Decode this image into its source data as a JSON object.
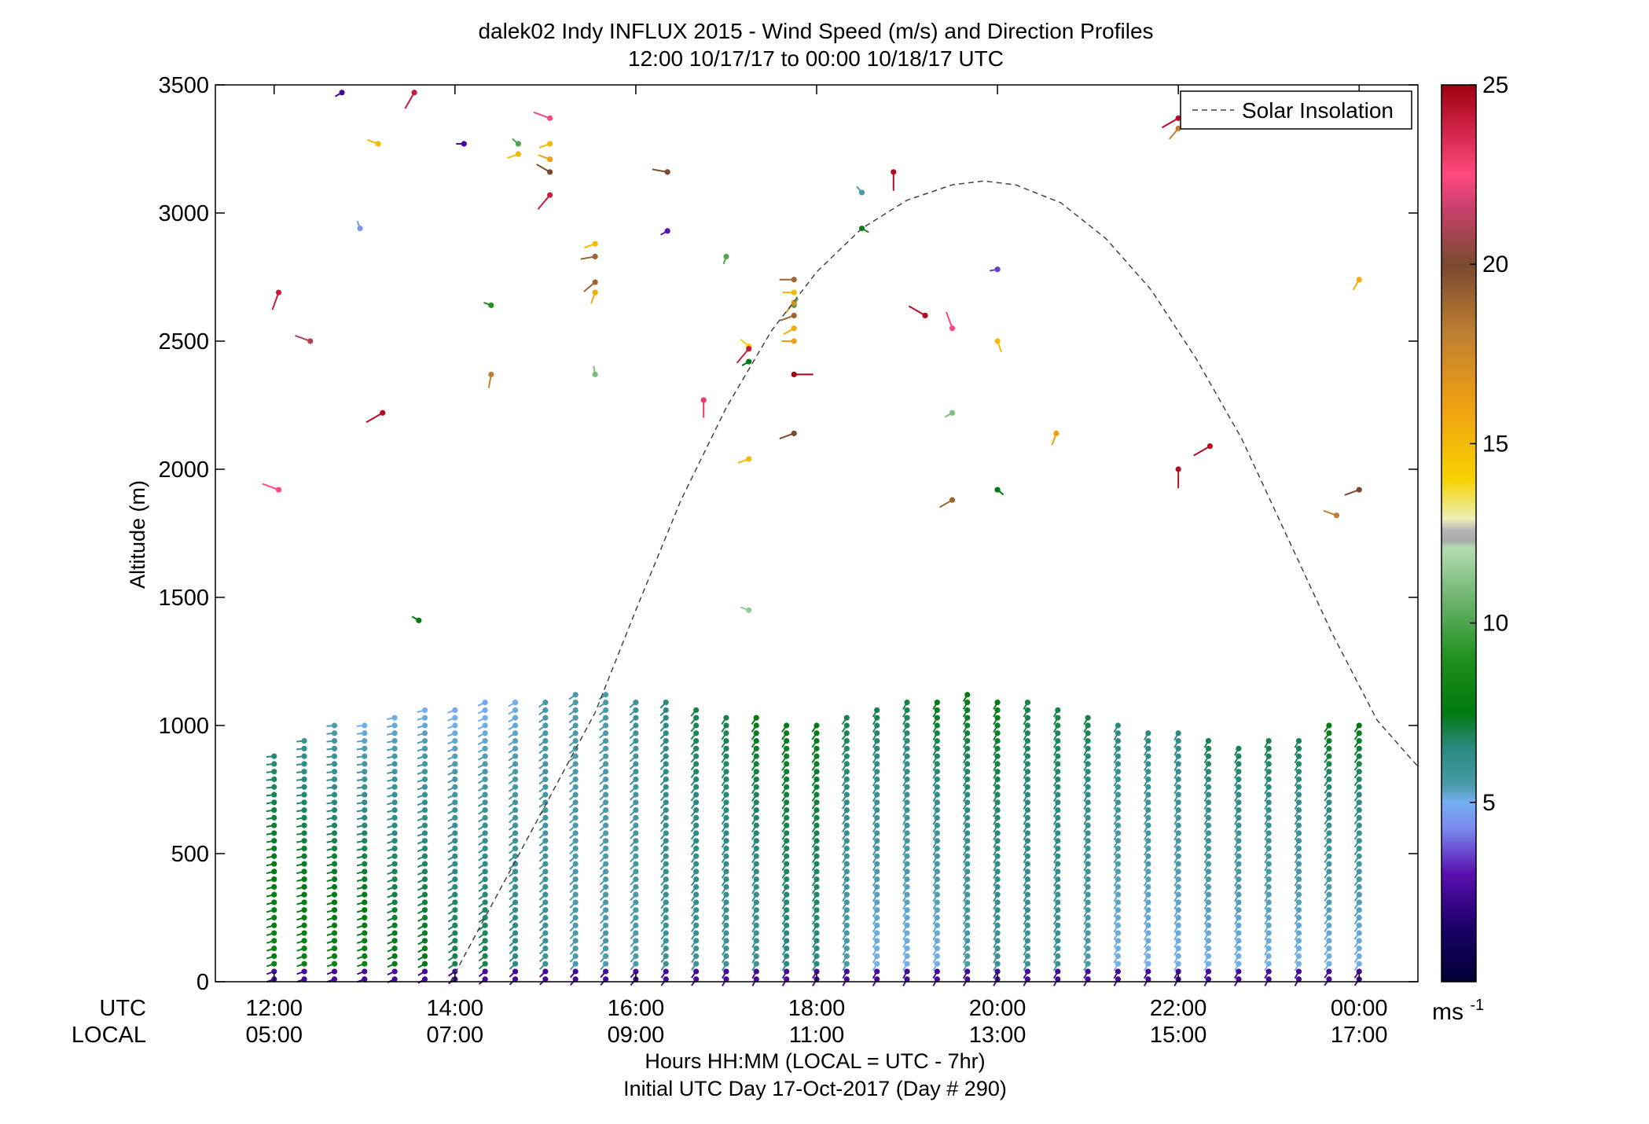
{
  "chart_data": {
    "type": "scatter",
    "title_line1": "dalek02 Indy INFLUX 2015 - Wind Speed (m/s) and Direction Profiles",
    "title_line2": "12:00 10/17/17 to 00:00 10/18/17  UTC",
    "ylabel": "Altitude (m)",
    "xlabel_line1": "Hours HH:MM  (LOCAL = UTC - 7hr)",
    "xlabel_line2": "Initial UTC Day 17-Oct-2017 (Day # 290)",
    "row_label_utc": "UTC",
    "row_label_local": "LOCAL",
    "ylim": [
      0,
      3500
    ],
    "xlim_hours_utc": [
      11.35,
      24.65
    ],
    "yticks": [
      0,
      500,
      1000,
      1500,
      2000,
      2500,
      3000,
      3500
    ],
    "ytick_labels": [
      "0",
      "500",
      "1000",
      "1500",
      "2000",
      "2500",
      "3000",
      "3500"
    ],
    "xticks_hours_utc": [
      12,
      14,
      16,
      18,
      20,
      22,
      24
    ],
    "xtick_labels_utc": [
      "12:00",
      "14:00",
      "16:00",
      "18:00",
      "20:00",
      "22:00",
      "00:00"
    ],
    "xtick_labels_local": [
      "05:00",
      "07:00",
      "09:00",
      "11:00",
      "13:00",
      "15:00",
      "17:00"
    ],
    "legend": {
      "label": "Solar Insolation",
      "placement": "top-right"
    },
    "colorbar": {
      "min": 0,
      "max": 25,
      "ticks": [
        5,
        10,
        15,
        20,
        25
      ],
      "tick_labels": [
        "5",
        "10",
        "15",
        "20",
        "25"
      ],
      "unit_base": "ms",
      "unit_exp": "-1",
      "stops": [
        {
          "v": 0,
          "c": "#000033"
        },
        {
          "v": 1.5,
          "c": "#1a0066"
        },
        {
          "v": 3,
          "c": "#5a0fb0"
        },
        {
          "v": 4.3,
          "c": "#7a8cf0"
        },
        {
          "v": 5,
          "c": "#74b0f0"
        },
        {
          "v": 5.5,
          "c": "#4a9aa8"
        },
        {
          "v": 6.5,
          "c": "#2a8a80"
        },
        {
          "v": 7.5,
          "c": "#007a10"
        },
        {
          "v": 9,
          "c": "#1e901e"
        },
        {
          "v": 10.5,
          "c": "#66b066"
        },
        {
          "v": 12.1,
          "c": "#b2dcb0"
        },
        {
          "v": 12.3,
          "c": "#a8a8a8"
        },
        {
          "v": 12.6,
          "c": "#b8b8b8"
        },
        {
          "v": 12.9,
          "c": "#eeeeb8"
        },
        {
          "v": 14,
          "c": "#f5d200"
        },
        {
          "v": 16,
          "c": "#f0a010"
        },
        {
          "v": 18,
          "c": "#c08030"
        },
        {
          "v": 20,
          "c": "#7a4a30"
        },
        {
          "v": 21.5,
          "c": "#c8406a"
        },
        {
          "v": 22.5,
          "c": "#ff4880"
        },
        {
          "v": 25,
          "c": "#a00010"
        }
      ]
    },
    "solar_insolation_curve": {
      "x_hours_utc": [
        15.55,
        16.0,
        16.5,
        17.0,
        17.5,
        18.0,
        18.5,
        19.0,
        19.5,
        19.85,
        20.2,
        20.7,
        21.2,
        21.7,
        22.2,
        22.7,
        23.2,
        23.7,
        24.2,
        24.65
      ],
      "y_altitude_m": [
        1050,
        1450,
        1880,
        2240,
        2540,
        2770,
        2940,
        3050,
        3110,
        3125,
        3110,
        3040,
        2900,
        2700,
        2430,
        2120,
        1740,
        1360,
        1020,
        840
      ],
      "y_left_edge_start_m": 0,
      "x_left_edge_start_hours_utc": 13.95
    },
    "profiles": {
      "times_hours_utc": [
        12.0,
        12.333,
        12.667,
        13.0,
        13.333,
        13.667,
        14.0,
        14.333,
        14.667,
        15.0,
        15.333,
        15.667,
        16.0,
        16.333,
        16.667,
        17.0,
        17.333,
        17.667,
        18.0,
        18.333,
        18.667,
        19.0,
        19.333,
        19.667,
        20.0,
        20.333,
        20.667,
        21.0,
        21.333,
        21.667,
        22.0,
        22.333,
        22.667,
        23.0,
        23.333,
        23.667,
        24.0
      ],
      "top_altitudes_m": [
        900,
        950,
        1000,
        1010,
        1050,
        1060,
        1080,
        1090,
        1100,
        1110,
        1130,
        1120,
        1100,
        1090,
        1070,
        1050,
        1040,
        1020,
        1010,
        1030,
        1080,
        1100,
        1110,
        1130,
        1110,
        1090,
        1060,
        1040,
        1000,
        980,
        990,
        950,
        930,
        940,
        960,
        1000,
        1000
      ],
      "low_level_speed_ms": [
        8,
        8,
        8,
        8,
        7.5,
        7.5,
        7,
        7,
        6.5,
        6,
        5.5,
        5.5,
        5.5,
        6,
        6,
        6,
        6,
        6.5,
        6.5,
        5.5,
        5,
        5,
        5,
        5.5,
        6,
        6,
        6,
        5.5,
        5,
        5,
        5,
        5,
        5,
        5,
        5,
        5,
        5
      ],
      "upper_level_speed_ms": [
        6.5,
        6,
        5.5,
        5,
        5,
        5,
        4.8,
        4.8,
        5,
        5.5,
        5.5,
        5.5,
        6,
        6.5,
        7,
        7,
        7.5,
        7.5,
        7.5,
        7,
        7,
        7,
        7.5,
        7.5,
        7.5,
        7,
        7,
        7,
        6.5,
        6.5,
        6.5,
        7,
        7,
        7,
        7,
        7.5,
        7.5
      ],
      "direction_from_deg_low": [
        250,
        250,
        250,
        250,
        245,
        240,
        235,
        230,
        225,
        225,
        220,
        220,
        220,
        215,
        215,
        210,
        210,
        210,
        210,
        210,
        210,
        210,
        210,
        210,
        210,
        210,
        210,
        210,
        210,
        210,
        210,
        210,
        210,
        210,
        210,
        215,
        215
      ],
      "direction_from_deg_high": [
        265,
        265,
        265,
        265,
        260,
        255,
        250,
        245,
        240,
        235,
        235,
        235,
        230,
        225,
        220,
        215,
        215,
        215,
        215,
        215,
        210,
        210,
        210,
        210,
        210,
        210,
        210,
        210,
        210,
        210,
        210,
        210,
        210,
        210,
        210,
        215,
        215
      ],
      "surface_speed_ms": 2.5,
      "range_gate_m": 30
    },
    "scattered_points": [
      {
        "t": 12.05,
        "alt": 1920,
        "spd": 22.5,
        "dir": 290
      },
      {
        "t": 12.05,
        "alt": 2690,
        "spd": 24,
        "dir": 200
      },
      {
        "t": 12.4,
        "alt": 2500,
        "spd": 21,
        "dir": 290
      },
      {
        "t": 12.75,
        "alt": 3470,
        "spd": 2.5,
        "dir": 240
      },
      {
        "t": 12.95,
        "alt": 2940,
        "spd": 4.5,
        "dir": 340
      },
      {
        "t": 13.15,
        "alt": 3270,
        "spd": 15,
        "dir": 290
      },
      {
        "t": 13.2,
        "alt": 2220,
        "spd": 24.5,
        "dir": 240
      },
      {
        "t": 13.55,
        "alt": 3470,
        "spd": 24,
        "dir": 210
      },
      {
        "t": 13.6,
        "alt": 1410,
        "spd": 7.5,
        "dir": 300
      },
      {
        "t": 14.1,
        "alt": 3270,
        "spd": 2.5,
        "dir": 270
      },
      {
        "t": 14.4,
        "alt": 2640,
        "spd": 9,
        "dir": 290
      },
      {
        "t": 14.4,
        "alt": 2370,
        "spd": 18,
        "dir": 190
      },
      {
        "t": 14.7,
        "alt": 3270,
        "spd": 10,
        "dir": 310
      },
      {
        "t": 14.7,
        "alt": 3230,
        "spd": 15,
        "dir": 250
      },
      {
        "t": 15.05,
        "alt": 3370,
        "spd": 22.5,
        "dir": 290
      },
      {
        "t": 15.05,
        "alt": 3270,
        "spd": 15,
        "dir": 250
      },
      {
        "t": 15.05,
        "alt": 3210,
        "spd": 16,
        "dir": 290
      },
      {
        "t": 15.05,
        "alt": 3160,
        "spd": 20,
        "dir": 300
      },
      {
        "t": 15.05,
        "alt": 3070,
        "spd": 24,
        "dir": 220
      },
      {
        "t": 15.55,
        "alt": 2830,
        "spd": 19,
        "dir": 260
      },
      {
        "t": 15.55,
        "alt": 2880,
        "spd": 15,
        "dir": 250
      },
      {
        "t": 15.55,
        "alt": 2690,
        "spd": 15.5,
        "dir": 200
      },
      {
        "t": 15.55,
        "alt": 2730,
        "spd": 19,
        "dir": 230
      },
      {
        "t": 15.55,
        "alt": 2370,
        "spd": 11,
        "dir": 350
      },
      {
        "t": 16.35,
        "alt": 2930,
        "spd": 3,
        "dir": 240
      },
      {
        "t": 16.35,
        "alt": 3160,
        "spd": 20,
        "dir": 280
      },
      {
        "t": 16.75,
        "alt": 2270,
        "spd": 23,
        "dir": 180
      },
      {
        "t": 17.0,
        "alt": 2830,
        "spd": 10,
        "dir": 200
      },
      {
        "t": 17.25,
        "alt": 1450,
        "spd": 11.5,
        "dir": 290
      },
      {
        "t": 17.25,
        "alt": 2040,
        "spd": 15,
        "dir": 250
      },
      {
        "t": 17.25,
        "alt": 2480,
        "spd": 14,
        "dir": 310
      },
      {
        "t": 17.25,
        "alt": 2420,
        "spd": 7.5,
        "dir": 240
      },
      {
        "t": 17.25,
        "alt": 2470,
        "spd": 24,
        "dir": 220
      },
      {
        "t": 17.75,
        "alt": 2140,
        "spd": 20,
        "dir": 250
      },
      {
        "t": 17.75,
        "alt": 2370,
        "spd": 25,
        "dir": 90
      },
      {
        "t": 17.75,
        "alt": 2500,
        "spd": 16,
        "dir": 270
      },
      {
        "t": 17.75,
        "alt": 2550,
        "spd": 15.5,
        "dir": 240
      },
      {
        "t": 17.75,
        "alt": 2600,
        "spd": 19,
        "dir": 250
      },
      {
        "t": 17.75,
        "alt": 2640,
        "spd": 10,
        "dir": 30
      },
      {
        "t": 17.75,
        "alt": 2650,
        "spd": 17,
        "dir": 220
      },
      {
        "t": 17.75,
        "alt": 2690,
        "spd": 15,
        "dir": 270
      },
      {
        "t": 17.75,
        "alt": 2740,
        "spd": 19,
        "dir": 270
      },
      {
        "t": 18.5,
        "alt": 3080,
        "spd": 5.5,
        "dir": 320
      },
      {
        "t": 18.5,
        "alt": 2940,
        "spd": 8,
        "dir": 120
      },
      {
        "t": 18.85,
        "alt": 3160,
        "spd": 24.5,
        "dir": 180
      },
      {
        "t": 19.2,
        "alt": 2600,
        "spd": 24.5,
        "dir": 300
      },
      {
        "t": 19.5,
        "alt": 2550,
        "spd": 22.5,
        "dir": 340
      },
      {
        "t": 19.5,
        "alt": 2220,
        "spd": 11,
        "dir": 240
      },
      {
        "t": 19.5,
        "alt": 1880,
        "spd": 19,
        "dir": 240
      },
      {
        "t": 20.0,
        "alt": 2780,
        "spd": 3.5,
        "dir": 260
      },
      {
        "t": 20.0,
        "alt": 2500,
        "spd": 15,
        "dir": 160
      },
      {
        "t": 20.0,
        "alt": 1920,
        "spd": 7.5,
        "dir": 130
      },
      {
        "t": 20.65,
        "alt": 2140,
        "spd": 16,
        "dir": 200
      },
      {
        "t": 22.0,
        "alt": 3370,
        "spd": 24.5,
        "dir": 240
      },
      {
        "t": 22.0,
        "alt": 3330,
        "spd": 18,
        "dir": 220
      },
      {
        "t": 22.0,
        "alt": 2000,
        "spd": 24.5,
        "dir": 180
      },
      {
        "t": 22.35,
        "alt": 2090,
        "spd": 24.5,
        "dir": 240
      },
      {
        "t": 23.75,
        "alt": 1820,
        "spd": 18,
        "dir": 290
      },
      {
        "t": 24.0,
        "alt": 2740,
        "spd": 15.5,
        "dir": 210
      },
      {
        "t": 24.0,
        "alt": 1920,
        "spd": 20,
        "dir": 250
      }
    ],
    "barb_length_m_per_ms": 0.05,
    "grid": false
  }
}
